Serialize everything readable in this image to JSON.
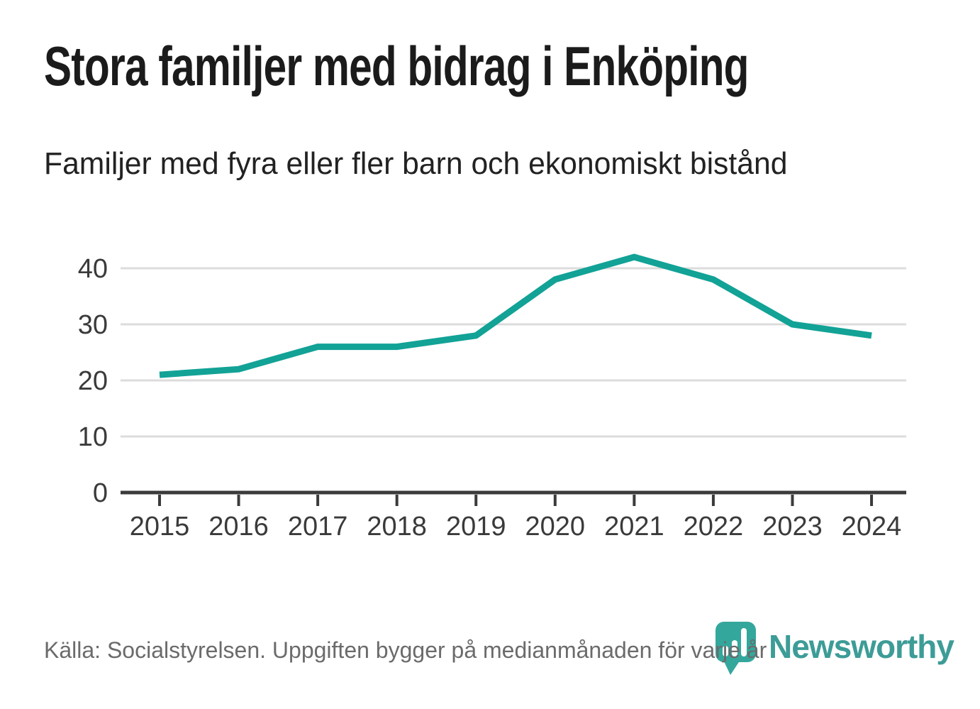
{
  "header": {
    "title": "Stora familjer med bidrag i Enköping",
    "subtitle": "Familjer med fyra eller fler barn och ekonomiskt bistånd"
  },
  "chart_data": {
    "type": "line",
    "title": "Stora familjer med bidrag i Enköping",
    "subtitle": "Familjer med fyra eller fler barn och ekonomiskt bistånd",
    "categories": [
      2015,
      2016,
      2017,
      2018,
      2019,
      2020,
      2021,
      2022,
      2023,
      2024
    ],
    "values": [
      21,
      22,
      26,
      26,
      28,
      38,
      42,
      38,
      30,
      28
    ],
    "xlabel": "",
    "ylabel": "",
    "ylim": [
      0,
      45
    ],
    "yticks": [
      0,
      10,
      20,
      30,
      40
    ],
    "grid": true,
    "legend": false,
    "line_color": "#12a296",
    "axis_color": "#3b3b3b",
    "gridline_color": "#dcdcdc",
    "tick_label_color": "#3a3a3a"
  },
  "footer": {
    "source": "Källa: Socialstyrelsen. Uppgiften bygger på medianmånaden för varje år"
  },
  "logo": {
    "text": "Newsworthy",
    "icon": "newsworthy-speech-bubble-bar-chart-icon",
    "icon_color": "#34a79d",
    "text_color": "#3d9c97"
  }
}
